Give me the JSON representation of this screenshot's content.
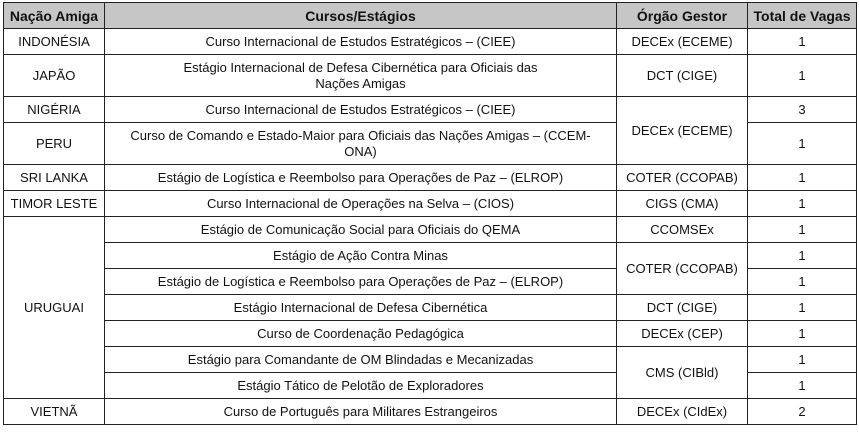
{
  "headers": [
    "Nação Amiga",
    "Cursos/Estágios",
    "Órgão Gestor",
    "Total de Vagas"
  ],
  "rows": [
    {
      "nation": "INDONÉSIA",
      "course": "Curso Internacional de Estudos Estratégicos – (CIEE)",
      "organ": "DECEx (ECEME)",
      "vagas": "1"
    },
    {
      "nation": "JAPÃO",
      "course": "Estágio Internacional de Defesa Cibernética para Oficiais das Nações Amigas",
      "organ": "DCT (CIGE)",
      "vagas": "1"
    },
    {
      "nation": "NIGÉRIA",
      "course": "Curso Internacional de Estudos Estratégicos – (CIEE)",
      "organ": "DECEx (ECEME)",
      "vagas": "3"
    },
    {
      "nation": "PERU",
      "course": "Curso de Comando e Estado-Maior para Oficiais das Nações Amigas – (CCEM-ONA)",
      "vagas": "1"
    },
    {
      "nation": "SRI LANKA",
      "course": "Estágio de Logística e Reembolso para Operações de Paz – (ELROP)",
      "organ": "COTER (CCOPAB)",
      "vagas": "1"
    },
    {
      "nation": "TIMOR LESTE",
      "course": "Curso Internacional de Operações na Selva – (CIOS)",
      "organ": "CIGS (CMA)",
      "vagas": "1"
    },
    {
      "nation": "URUGUAI",
      "course": "Estágio de Comunicação Social para Oficiais do QEMA",
      "organ": "CCOMSEx",
      "vagas": "1"
    },
    {
      "course": "Estágio de Ação Contra Minas",
      "organ": "COTER (CCOPAB)",
      "vagas": "1"
    },
    {
      "course": "Estágio de Logística e Reembolso para Operações de Paz – (ELROP)",
      "vagas": "1"
    },
    {
      "course": "Estágio Internacional de Defesa Cibernética",
      "organ": "DCT (CIGE)",
      "vagas": "1"
    },
    {
      "course": "Curso de Coordenação Pedagógica",
      "organ": "DECEx (CEP)",
      "vagas": "1"
    },
    {
      "course": "Estágio para Comandante de OM Blindadas e Mecanizadas",
      "organ": "CMS (CIBld)",
      "vagas": "1"
    },
    {
      "course": "Estágio Tático de Pelotão de Exploradores",
      "vagas": "1"
    },
    {
      "nation": "VIETNÃ",
      "course": "Curso de Português para Militares Estrangeiros",
      "organ": "DECEx (CIdEx)",
      "vagas": "2"
    }
  ]
}
